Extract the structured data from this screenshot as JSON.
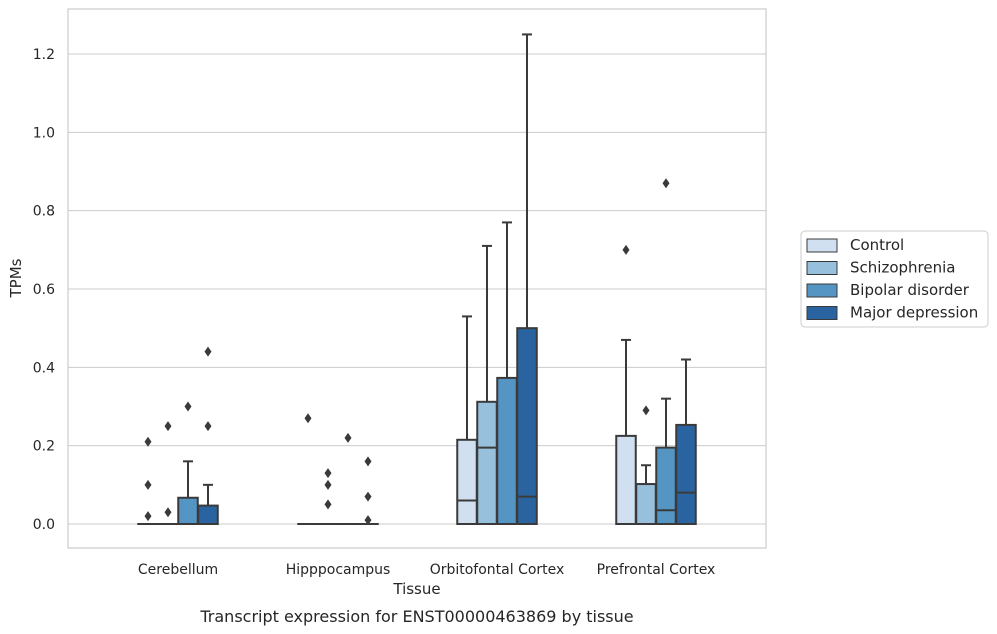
{
  "chart_data": {
    "type": "boxplot",
    "xlabel": "Tissue",
    "ylabel": "TPMs",
    "caption": "Transcript expression for ENST00000463869 by tissue",
    "ylim": [
      -0.06,
      1.31
    ],
    "yticks": [
      0.0,
      0.2,
      0.4,
      0.6,
      0.8,
      1.0,
      1.2
    ],
    "ytick_labels": [
      "0.0",
      "0.2",
      "0.4",
      "0.6",
      "0.8",
      "1.0",
      "1.2"
    ],
    "grid": "horizontal",
    "legend_placement": "right-outside",
    "categories": [
      "Cerebellum",
      "Hipppocampus",
      "Orbitofontal Cortex",
      "Prefrontal Cortex"
    ],
    "series": [
      {
        "name": "Control",
        "color": "#d0e0f1",
        "boxes": [
          {
            "q1": 0.0,
            "median": 0.0,
            "q3": 0.0,
            "whislo": 0.0,
            "whishi": 0.0,
            "fliers": [
              0.02,
              0.1,
              0.21
            ]
          },
          {
            "q1": 0.0,
            "median": 0.0,
            "q3": 0.0,
            "whislo": 0.0,
            "whishi": 0.0,
            "fliers": [
              0.27
            ]
          },
          {
            "q1": 0.0,
            "median": 0.06,
            "q3": 0.215,
            "whislo": 0.0,
            "whishi": 0.53,
            "fliers": []
          },
          {
            "q1": 0.0,
            "median": 0.0,
            "q3": 0.225,
            "whislo": 0.0,
            "whishi": 0.47,
            "fliers": [
              0.7
            ]
          }
        ]
      },
      {
        "name": "Schizophrenia",
        "color": "#97c0dd",
        "boxes": [
          {
            "q1": 0.0,
            "median": 0.0,
            "q3": 0.0,
            "whislo": 0.0,
            "whishi": 0.0,
            "fliers": [
              0.03,
              0.25
            ]
          },
          {
            "q1": 0.0,
            "median": 0.0,
            "q3": 0.0,
            "whislo": 0.0,
            "whishi": 0.0,
            "fliers": [
              0.05,
              0.1,
              0.13
            ]
          },
          {
            "q1": 0.0,
            "median": 0.195,
            "q3": 0.312,
            "whislo": 0.0,
            "whishi": 0.71,
            "fliers": []
          },
          {
            "q1": 0.0,
            "median": 0.0,
            "q3": 0.102,
            "whislo": 0.0,
            "whishi": 0.15,
            "fliers": [
              0.29
            ]
          }
        ]
      },
      {
        "name": "Bipolar disorder",
        "color": "#5595c4",
        "boxes": [
          {
            "q1": 0.0,
            "median": 0.0,
            "q3": 0.067,
            "whislo": 0.0,
            "whishi": 0.16,
            "fliers": [
              0.3
            ]
          },
          {
            "q1": 0.0,
            "median": 0.0,
            "q3": 0.0,
            "whislo": 0.0,
            "whishi": 0.0,
            "fliers": [
              0.22
            ]
          },
          {
            "q1": 0.0,
            "median": 0.0,
            "q3": 0.373,
            "whislo": 0.0,
            "whishi": 0.77,
            "fliers": []
          },
          {
            "q1": 0.0,
            "median": 0.035,
            "q3": 0.195,
            "whislo": 0.0,
            "whishi": 0.32,
            "fliers": [
              0.87
            ]
          }
        ]
      },
      {
        "name": "Major depression",
        "color": "#2a64a0",
        "boxes": [
          {
            "q1": 0.0,
            "median": 0.0,
            "q3": 0.047,
            "whislo": 0.0,
            "whishi": 0.1,
            "fliers": [
              0.25,
              0.44
            ]
          },
          {
            "q1": 0.0,
            "median": 0.0,
            "q3": 0.0,
            "whislo": 0.0,
            "whishi": 0.0,
            "fliers": [
              0.01,
              0.07,
              0.16
            ]
          },
          {
            "q1": 0.0,
            "median": 0.07,
            "q3": 0.5,
            "whislo": 0.0,
            "whishi": 1.25,
            "fliers": []
          },
          {
            "q1": 0.0,
            "median": 0.08,
            "q3": 0.253,
            "whislo": 0.0,
            "whishi": 0.42,
            "fliers": []
          }
        ]
      }
    ]
  }
}
